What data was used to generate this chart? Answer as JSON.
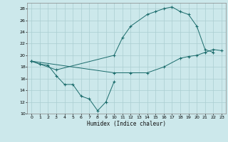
{
  "xlabel": "Humidex (Indice chaleur)",
  "background_color": "#cce8eb",
  "grid_color": "#aacdd1",
  "line_color": "#1a6b6b",
  "xlim": [
    -0.5,
    23.5
  ],
  "ylim": [
    10,
    29
  ],
  "xticks": [
    0,
    1,
    2,
    3,
    4,
    5,
    6,
    7,
    8,
    9,
    10,
    11,
    12,
    13,
    14,
    15,
    16,
    17,
    18,
    19,
    20,
    21,
    22,
    23
  ],
  "yticks": [
    10,
    12,
    14,
    16,
    18,
    20,
    22,
    24,
    26,
    28
  ],
  "series": [
    {
      "x": [
        0,
        1,
        2,
        3,
        4,
        5,
        6,
        7,
        8,
        9,
        10
      ],
      "y": [
        19,
        18.5,
        18.3,
        16.5,
        15.0,
        15.0,
        13.0,
        12.5,
        10.5,
        12.0,
        15.5
      ]
    },
    {
      "x": [
        0,
        1,
        3,
        10,
        11,
        12,
        14,
        15,
        16,
        17,
        18,
        19,
        20,
        21,
        22
      ],
      "y": [
        19,
        18.5,
        17.5,
        20.0,
        23.0,
        25.0,
        27.0,
        27.5,
        28.0,
        28.3,
        27.5,
        27.0,
        25.0,
        21.0,
        20.5
      ]
    },
    {
      "x": [
        0,
        10,
        12,
        14,
        16,
        18,
        19,
        20,
        21,
        22,
        23
      ],
      "y": [
        19,
        17.0,
        17.0,
        17.0,
        18.0,
        19.5,
        19.8,
        20.0,
        20.5,
        21.0,
        20.8
      ]
    }
  ]
}
